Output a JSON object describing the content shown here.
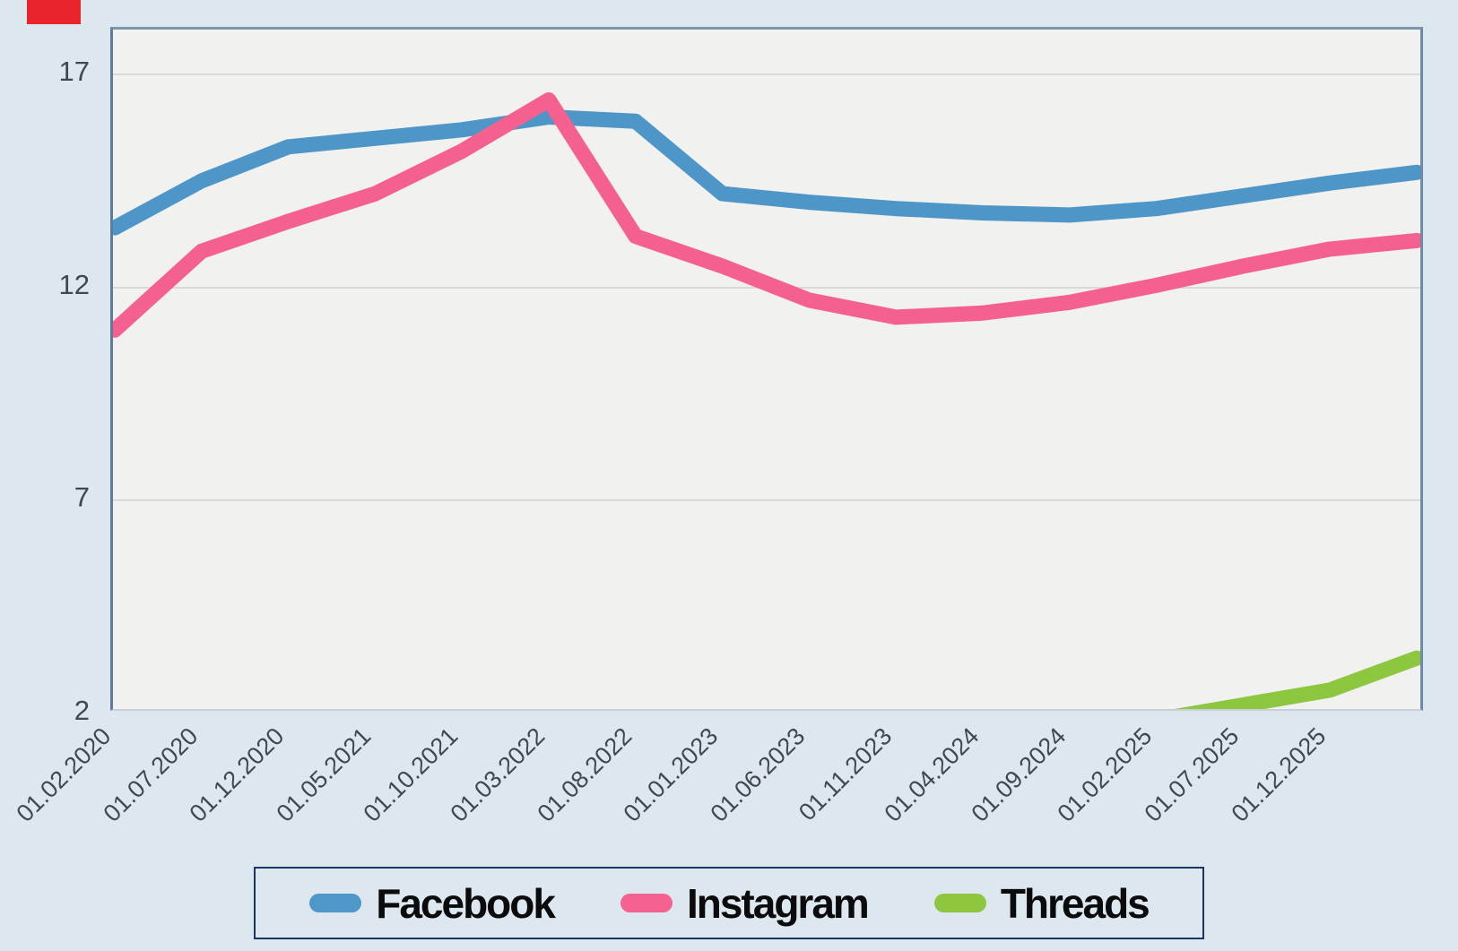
{
  "page": {
    "background_color": "#dce7f0",
    "plot_background_color": "#f1f1ef",
    "gridline_color": "#d9d9d9",
    "axis_label_color": "#41474c",
    "red_marker_color": "#e8232b"
  },
  "chart_data": {
    "type": "line",
    "title": "",
    "xlabel": "",
    "ylabel": "",
    "yticks": [
      17,
      12,
      7,
      2
    ],
    "ylim": [
      2,
      17.6
    ],
    "grid": "horizontal gridlines on",
    "legend_position": "bottom",
    "x_tick_labels": [
      "01.02.2020",
      "01.07.2020",
      "01.12.2020",
      "01.05.2021",
      "01.10.2021",
      "01.03.2022",
      "01.08.2022",
      "01.01.2023",
      "01.06.2023",
      "01.11.2023",
      "01.04.2024",
      "01.09.2024",
      "01.02.2025",
      "01.07.2025",
      "01.12.2025"
    ],
    "note": "series contain one extra unlabeled point after 01.12.2025; Threads line enters from below the y-axis minimum",
    "series": [
      {
        "name": "Facebook",
        "color": "#4e96c7",
        "values": [
          13.4,
          14.5,
          15.3,
          15.5,
          15.7,
          16.0,
          15.9,
          14.2,
          14.0,
          13.85,
          13.75,
          13.7,
          13.85,
          14.15,
          14.45,
          14.7
        ]
      },
      {
        "name": "Instagram",
        "color": "#f5618e",
        "values": [
          11.0,
          12.85,
          13.55,
          14.2,
          15.2,
          16.4,
          13.2,
          12.5,
          11.7,
          11.3,
          11.4,
          11.65,
          12.05,
          12.5,
          12.9,
          13.1
        ]
      },
      {
        "name": "Threads",
        "color": "#8dc63f",
        "values": [
          null,
          null,
          null,
          null,
          null,
          null,
          null,
          null,
          null,
          null,
          null,
          null,
          1.85,
          2.2,
          2.55,
          3.3
        ]
      }
    ]
  },
  "legend": {
    "border_color": "#17375e",
    "items": [
      {
        "label": "Facebook",
        "color": "#4f97c9"
      },
      {
        "label": "Instagram",
        "color": "#f5628f"
      },
      {
        "label": "Threads",
        "color": "#8ec63f"
      }
    ]
  }
}
